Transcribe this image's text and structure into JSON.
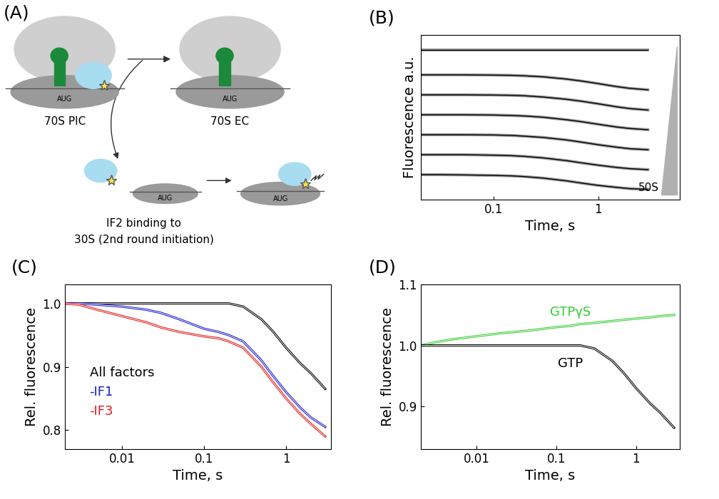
{
  "diagram": {
    "panel_label": "(A)",
    "complexes": [
      {
        "label": "70S PIC",
        "mrna": "AUG"
      },
      {
        "label": "70S EC",
        "mrna": "AUG"
      },
      {
        "mrna": "AUG"
      },
      {
        "mrna": "AUG"
      }
    ],
    "caption": [
      "IF2 binding to",
      "30S (2nd round initiation)"
    ]
  },
  "chart_data": [
    {
      "type": "line",
      "title": "(B)",
      "xlabel": "Time, s",
      "ylabel": "Fluorescence a.u.",
      "log": "x",
      "tick_labels": "x",
      "annotations": [
        "50S"
      ],
      "x": [
        0.02,
        0.03,
        0.05,
        0.1,
        0.15,
        0.2,
        0.3,
        0.5,
        0.7,
        1,
        1.5,
        2,
        3
      ],
      "xlim": [
        0.02,
        6
      ],
      "xticks": [
        0.1,
        1
      ],
      "ylim": [
        1.0,
        7.6
      ],
      "series": [
        {
          "color": "#a0a0a0",
          "values": [
            7.0,
            7.0,
            7.0,
            7.0,
            7.0,
            7.0,
            7.0,
            7.0,
            7.0,
            7.0,
            7.0,
            7.0,
            7.0
          ]
        },
        {
          "color": "#a0a0a0",
          "values": [
            6.0,
            6.0,
            6.0,
            5.99,
            5.98,
            5.96,
            5.92,
            5.83,
            5.75,
            5.65,
            5.53,
            5.46,
            5.4
          ]
        },
        {
          "color": "#a0a0a0",
          "values": [
            5.2,
            5.2,
            5.2,
            5.19,
            5.18,
            5.16,
            5.11,
            5.02,
            4.94,
            4.84,
            4.72,
            4.65,
            4.59
          ]
        },
        {
          "color": "#a0a0a0",
          "values": [
            4.4,
            4.4,
            4.4,
            4.39,
            4.37,
            4.35,
            4.3,
            4.2,
            4.12,
            4.02,
            3.91,
            3.85,
            3.8
          ]
        },
        {
          "color": "#a0a0a0",
          "values": [
            3.6,
            3.6,
            3.6,
            3.59,
            3.57,
            3.54,
            3.49,
            3.39,
            3.3,
            3.2,
            3.1,
            3.04,
            3.0
          ]
        },
        {
          "color": "#a0a0a0",
          "values": [
            2.8,
            2.8,
            2.8,
            2.78,
            2.76,
            2.73,
            2.67,
            2.56,
            2.47,
            2.38,
            2.29,
            2.24,
            2.2
          ]
        },
        {
          "color": "#a0a0a0",
          "values": [
            2.0,
            2.0,
            1.99,
            1.97,
            1.95,
            1.92,
            1.86,
            1.75,
            1.66,
            1.57,
            1.49,
            1.44,
            1.41
          ]
        }
      ]
    },
    {
      "type": "line",
      "title": "(C)",
      "xlabel": "Time, s",
      "ylabel": "Rel. fluorescence",
      "log": "x",
      "legend": "lower left",
      "x": [
        0.002,
        0.003,
        0.005,
        0.01,
        0.02,
        0.03,
        0.05,
        0.1,
        0.15,
        0.2,
        0.3,
        0.5,
        0.7,
        1,
        1.5,
        2,
        3
      ],
      "xlim": [
        0.002,
        3.5
      ],
      "xticks": [
        0.01,
        0.1,
        1
      ],
      "ylim": [
        0.77,
        1.03
      ],
      "yticks": [
        {
          "value": 0.8,
          "label": "0.8"
        },
        {
          "value": 0.9,
          "label": "0.9"
        },
        {
          "value": 1.0,
          "label": "1.0"
        }
      ],
      "series": [
        {
          "name": "All factors",
          "color": "#000000",
          "values": [
            1.0,
            1.0,
            1.0,
            1.0,
            1.0,
            1.0,
            1.0,
            1.0,
            1.0,
            1.0,
            0.995,
            0.975,
            0.955,
            0.93,
            0.905,
            0.89,
            0.865
          ]
        },
        {
          "name": "-IF1",
          "color": "#1a1acc",
          "values": [
            1.0,
            1.0,
            0.998,
            0.995,
            0.99,
            0.985,
            0.975,
            0.96,
            0.955,
            0.95,
            0.94,
            0.91,
            0.885,
            0.86,
            0.835,
            0.82,
            0.805
          ]
        },
        {
          "name": "-IF3",
          "color": "#e01a1a",
          "values": [
            1.0,
            0.998,
            0.99,
            0.98,
            0.97,
            0.962,
            0.955,
            0.948,
            0.945,
            0.94,
            0.93,
            0.9,
            0.875,
            0.85,
            0.825,
            0.81,
            0.79
          ]
        }
      ]
    },
    {
      "type": "line",
      "title": "(D)",
      "xlabel": "Time, s",
      "ylabel": "Rel. fluorescence",
      "log": "x",
      "x": [
        0.002,
        0.003,
        0.005,
        0.01,
        0.02,
        0.03,
        0.05,
        0.1,
        0.15,
        0.2,
        0.3,
        0.5,
        0.7,
        1,
        1.5,
        2,
        3
      ],
      "xlim": [
        0.002,
        3.5
      ],
      "xticks": [
        0.01,
        0.1,
        1
      ],
      "ylim": [
        0.83,
        1.1
      ],
      "yticks": [
        {
          "value": 0.9,
          "label": "0.9"
        },
        {
          "value": 1.0,
          "label": "1.0"
        },
        {
          "value": 1.1,
          "label": "1.1"
        }
      ],
      "series": [
        {
          "name": "GTPγS",
          "color": "#33cc33",
          "values": [
            1.0,
            1.005,
            1.01,
            1.015,
            1.02,
            1.022,
            1.025,
            1.03,
            1.032,
            1.035,
            1.037,
            1.04,
            1.042,
            1.044,
            1.046,
            1.048,
            1.05
          ]
        },
        {
          "name": "GTP",
          "color": "#000000",
          "values": [
            1.0,
            1.0,
            1.0,
            1.0,
            1.0,
            1.0,
            1.0,
            1.0,
            1.0,
            1.0,
            0.995,
            0.975,
            0.955,
            0.93,
            0.905,
            0.89,
            0.865
          ]
        }
      ]
    }
  ]
}
